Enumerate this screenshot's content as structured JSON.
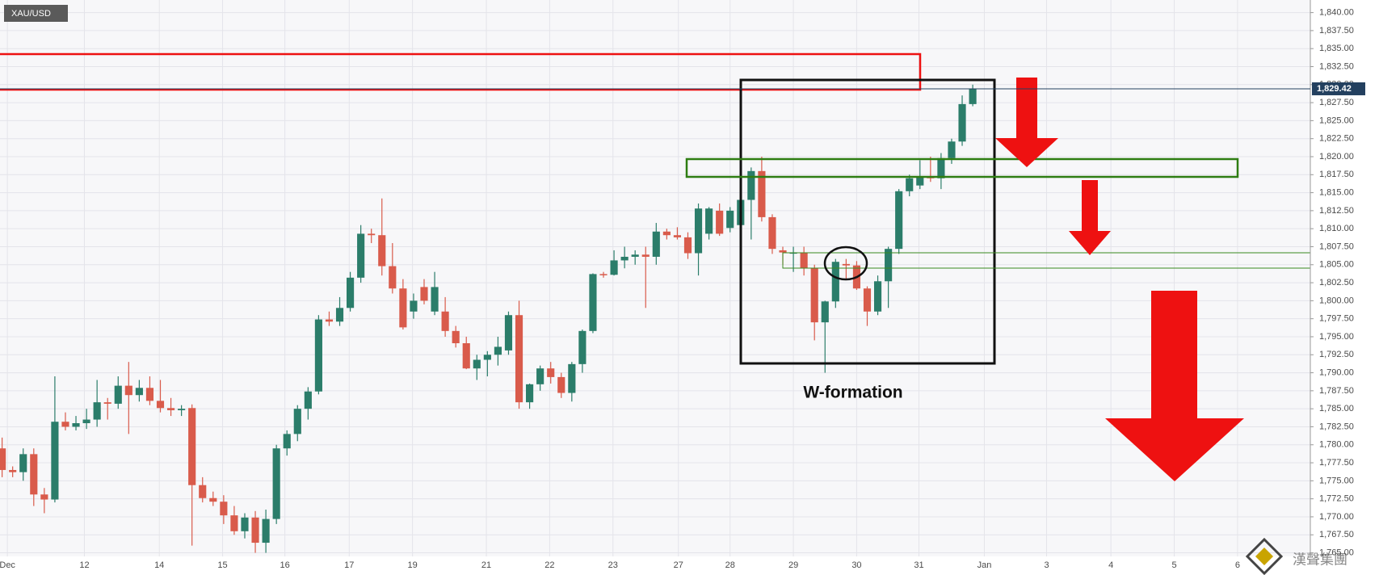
{
  "chart_data": {
    "type": "candlestick",
    "symbol": "XAU/USD",
    "annotation": "W-formation",
    "watermark": "漢聲集團",
    "up_color": "#2b7d6a",
    "down_color": "#d95b4b",
    "grid": true,
    "open": [
      1779.5,
      1776.5,
      1776.2,
      1778.7,
      1773.1,
      1772.4,
      1783.2,
      1782.5,
      1783,
      1783.5,
      1785.9,
      1785.7,
      1788.2,
      1786.9,
      1787.9,
      1786.1,
      1785.1,
      1784.8,
      1785.1,
      1774.4,
      1772.6,
      1772.1,
      1770.2,
      1768,
      1769.9,
      1766.4,
      1769.7,
      1779.5,
      1781.5,
      1785,
      1787.4,
      1797.4,
      1797.1,
      1799,
      1803.2,
      1809.3,
      1809.1,
      1804.8,
      1801.7,
      1798.5,
      1801.9,
      1798.5,
      1798.5,
      1795.8,
      1794.1,
      1790.6,
      1791.8,
      1792.5,
      1793.1,
      1798,
      1785.9,
      1788.4,
      1790.6,
      1789.4,
      1787.2,
      1791.2,
      1795.8,
      1803.7,
      1803.6,
      1805.6,
      1806.1,
      1806.4,
      1806.1,
      1809.6,
      1809.1,
      1808.8,
      1806.6,
      1809.3,
      1812.5,
      1810.1,
      1810.5,
      1814,
      1818,
      1811.6,
      1807,
      1806.7,
      1806.7,
      1804.5,
      1797,
      1799.9,
      1805.1,
      1804.9,
      1801.7,
      1798.5,
      1802.7,
      1807.2,
      1815.2,
      1816,
      1817.2,
      1817,
      1819.8,
      1822.1,
      1827.3
    ],
    "high": [
      1781,
      1777,
      1779.5,
      1779.5,
      1774,
      1789.5,
      1784.5,
      1784,
      1785,
      1789,
      1786.5,
      1789.5,
      1791.5,
      1789,
      1789.5,
      1789,
      1786.5,
      1785.5,
      1785.6,
      1775.5,
      1773.5,
      1773,
      1771.5,
      1770.5,
      1770.8,
      1771,
      1780,
      1782,
      1785.5,
      1788,
      1798,
      1798.5,
      1800.5,
      1804,
      1810.5,
      1810,
      1814.2,
      1808,
      1803,
      1801,
      1803,
      1804,
      1800.5,
      1796.5,
      1795,
      1792.5,
      1793,
      1795,
      1798.5,
      1800,
      1788.5,
      1791,
      1791.5,
      1790,
      1791.5,
      1796,
      1803.8,
      1804,
      1807,
      1807.5,
      1807,
      1807.5,
      1810.8,
      1810,
      1810.2,
      1809.5,
      1813.5,
      1813,
      1813.5,
      1813,
      1816,
      1818.5,
      1820,
      1812,
      1807.5,
      1807.5,
      1807.5,
      1805,
      1800,
      1805.8,
      1805.8,
      1805.5,
      1802,
      1803.5,
      1807.5,
      1815.5,
      1817.5,
      1819.5,
      1820,
      1820.5,
      1822.5,
      1828.5,
      1830
    ],
    "low": [
      1775.5,
      1775.5,
      1775,
      1771.5,
      1770.5,
      1772,
      1782,
      1782,
      1782.2,
      1782.5,
      1783.5,
      1785,
      1781.5,
      1786,
      1785.5,
      1784.5,
      1784,
      1784,
      1766,
      1772,
      1771.5,
      1769,
      1767.5,
      1767,
      1765,
      1765,
      1769,
      1778.5,
      1780.5,
      1783.5,
      1787,
      1796.5,
      1796.5,
      1798.5,
      1802.5,
      1808,
      1803.5,
      1801,
      1796,
      1797.5,
      1799.5,
      1798,
      1795,
      1793.5,
      1790.5,
      1789,
      1789.5,
      1791,
      1792.5,
      1785,
      1785,
      1787.5,
      1788.5,
      1786.5,
      1786,
      1790,
      1795.5,
      1803.2,
      1803.5,
      1804.5,
      1805,
      1799,
      1805,
      1808.5,
      1808.5,
      1805.8,
      1803.5,
      1808.5,
      1809,
      1809.5,
      1809.5,
      1808.5,
      1811,
      1806.5,
      1805,
      1804,
      1803.5,
      1794.5,
      1790,
      1799,
      1803,
      1801.5,
      1796.5,
      1798,
      1799,
      1806.5,
      1814.5,
      1815.5,
      1816.5,
      1815.5,
      1819,
      1821.5,
      1827
    ],
    "close": [
      1776.5,
      1776.2,
      1778.7,
      1773.1,
      1772.4,
      1783.2,
      1782.5,
      1783,
      1783.5,
      1785.9,
      1785.7,
      1788.2,
      1786.9,
      1787.9,
      1786.1,
      1785.1,
      1784.8,
      1785.0,
      1774.4,
      1772.6,
      1772.1,
      1770.2,
      1768,
      1769.9,
      1766.4,
      1769.7,
      1779.5,
      1781.5,
      1785,
      1787.4,
      1797.4,
      1797.1,
      1799,
      1803.2,
      1809.3,
      1809.1,
      1804.8,
      1801.7,
      1796.3,
      1800,
      1800,
      1801.9,
      1795.8,
      1794.1,
      1790.6,
      1791.8,
      1792.5,
      1793.6,
      1798,
      1785.9,
      1788.4,
      1790.6,
      1789.4,
      1787.2,
      1791.2,
      1795.8,
      1803.7,
      1803.6,
      1805.6,
      1806.1,
      1806.4,
      1806.1,
      1809.6,
      1809.1,
      1808.8,
      1806.6,
      1812.8,
      1812.8,
      1809.3,
      1812.5,
      1814,
      1818,
      1811.6,
      1807.2,
      1806.7,
      1806.7,
      1804.5,
      1797,
      1799.9,
      1805.4,
      1804.9,
      1801.7,
      1798.5,
      1802.7,
      1807.2,
      1815.2,
      1817,
      1817.2,
      1817,
      1819.8,
      1822.1,
      1827.3,
      1829.4
    ],
    "last_price": {
      "value": 1829.42,
      "label": "1,829.42"
    },
    "xlim": [
      -0.2,
      124
    ],
    "xticks": [
      {
        "value": 0.5,
        "label": "Dec"
      },
      {
        "value": 7.8,
        "label": "12"
      },
      {
        "value": 14.9,
        "label": "14"
      },
      {
        "value": 20.9,
        "label": "15"
      },
      {
        "value": 26.8,
        "label": "16"
      },
      {
        "value": 32.9,
        "label": "17"
      },
      {
        "value": 38.9,
        "label": "19"
      },
      {
        "value": 45.9,
        "label": "21"
      },
      {
        "value": 51.9,
        "label": "22"
      },
      {
        "value": 57.9,
        "label": "23"
      },
      {
        "value": 64.1,
        "label": "27"
      },
      {
        "value": 69,
        "label": "28"
      },
      {
        "value": 75,
        "label": "29"
      },
      {
        "value": 81,
        "label": "30"
      },
      {
        "value": 86.9,
        "label": "31"
      },
      {
        "value": 93.1,
        "label": "Jan"
      },
      {
        "value": 99,
        "label": "3"
      },
      {
        "value": 105.1,
        "label": "4"
      },
      {
        "value": 111.1,
        "label": "5"
      },
      {
        "value": 117.1,
        "label": "6"
      }
    ],
    "ylim": [
      1764.5,
      1841.75
    ],
    "yticks": [
      {
        "value": 1765,
        "label": "1,765.00"
      },
      {
        "value": 1767.5,
        "label": "1,767.50"
      },
      {
        "value": 1770,
        "label": "1,770.00"
      },
      {
        "value": 1772.5,
        "label": "1,772.50"
      },
      {
        "value": 1775,
        "label": "1,775.00"
      },
      {
        "value": 1777.5,
        "label": "1,777.50"
      },
      {
        "value": 1780,
        "label": "1,780.00"
      },
      {
        "value": 1782.5,
        "label": "1,782.50"
      },
      {
        "value": 1785,
        "label": "1,785.00"
      },
      {
        "value": 1787.5,
        "label": "1,787.50"
      },
      {
        "value": 1790,
        "label": "1,790.00"
      },
      {
        "value": 1792.5,
        "label": "1,792.50"
      },
      {
        "value": 1795,
        "label": "1,795.00"
      },
      {
        "value": 1797.5,
        "label": "1,797.50"
      },
      {
        "value": 1800,
        "label": "1,800.00"
      },
      {
        "value": 1802.5,
        "label": "1,802.50"
      },
      {
        "value": 1805,
        "label": "1,805.00"
      },
      {
        "value": 1807.5,
        "label": "1,807.50"
      },
      {
        "value": 1810,
        "label": "1,810.00"
      },
      {
        "value": 1812.5,
        "label": "1,812.50"
      },
      {
        "value": 1815,
        "label": "1,815.00"
      },
      {
        "value": 1817.5,
        "label": "1,817.50"
      },
      {
        "value": 1820,
        "label": "1,820.00"
      },
      {
        "value": 1822.5,
        "label": "1,822.50"
      },
      {
        "value": 1825,
        "label": "1,825.00"
      },
      {
        "value": 1827.5,
        "label": "1,827.50"
      },
      {
        "value": 1830,
        "label": "1,830.00"
      },
      {
        "value": 1832.5,
        "label": "1,832.50"
      },
      {
        "value": 1835,
        "label": "1,835.00"
      },
      {
        "value": 1837.5,
        "label": "1,837.50"
      },
      {
        "value": 1840,
        "label": "1,840.00"
      }
    ]
  }
}
